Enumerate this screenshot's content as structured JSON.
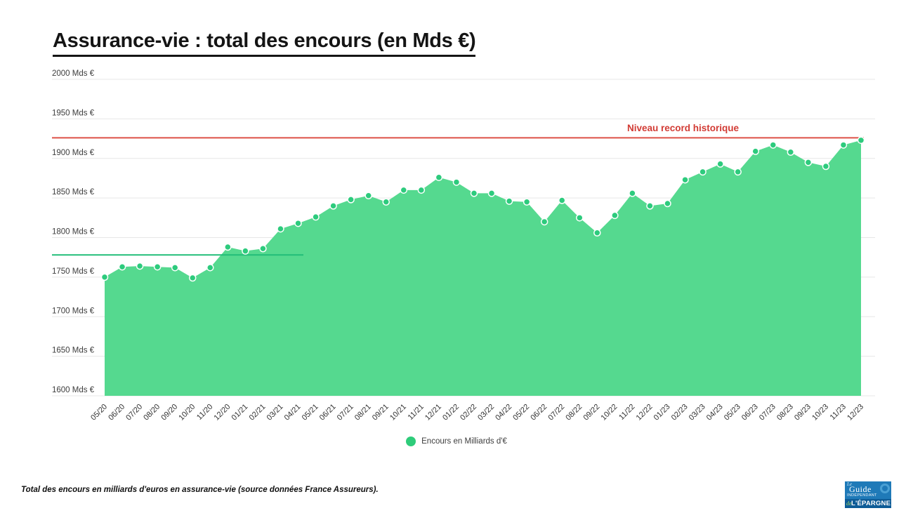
{
  "title": "Assurance-vie : total des encours (en Mds €)",
  "chart_data": {
    "type": "area",
    "x": [
      "05/20",
      "06/20",
      "07/20",
      "08/20",
      "09/20",
      "10/20",
      "11/20",
      "12/20",
      "01/21",
      "02/21",
      "03/21",
      "04/21",
      "05/21",
      "06/21",
      "07/21",
      "08/21",
      "09/21",
      "10/21",
      "11/21",
      "12/21",
      "01/22",
      "02/22",
      "03/22",
      "04/22",
      "05/22",
      "06/22",
      "07/22",
      "08/22",
      "09/22",
      "10/22",
      "11/22",
      "12/22",
      "01/23",
      "02/23",
      "03/23",
      "04/23",
      "05/23",
      "06/23",
      "07/23",
      "08/23",
      "09/23",
      "10/23",
      "11/23",
      "12/23"
    ],
    "series": [
      {
        "name": "Encours en Milliards d'€",
        "values": [
          1750,
          1763,
          1764,
          1763,
          1762,
          1749,
          1762,
          1788,
          1783,
          1786,
          1811,
          1818,
          1826,
          1840,
          1848,
          1853,
          1845,
          1860,
          1860,
          1876,
          1870,
          1856,
          1856,
          1846,
          1845,
          1820,
          1847,
          1825,
          1806,
          1828,
          1856,
          1840,
          1843,
          1873,
          1883,
          1893,
          1883,
          1909,
          1917,
          1908,
          1895,
          1890,
          1917,
          1923
        ],
        "point_markers": true
      }
    ],
    "ylim": [
      1600,
      2000
    ],
    "ytick_values": [
      2000,
      1950,
      1900,
      1850,
      1800,
      1750,
      1700,
      1650,
      1600
    ],
    "ytick_suffix": " Mds €",
    "grid": "horizontal",
    "legend_position": "bottom-center",
    "annotations": {
      "record_line": {
        "label": "Niveau record historique",
        "value": 1926,
        "color": "#dd5147"
      },
      "reference_line": {
        "value": 1778,
        "color": "#22bd79",
        "x_start": "05/20",
        "x_end": "04/21"
      }
    },
    "colors": {
      "area_fill": "#55d98f",
      "point": "#2dcb7d",
      "grid": "#e7e7e7",
      "axis_label": "#3d3d3d"
    }
  },
  "legend": {
    "label": "Encours en Milliards d'€",
    "dot_color": "#2ecc7a"
  },
  "footer": {
    "note": "Total des encours en milliards d'euros en assurance-vie (source données France Assureurs)."
  },
  "logo": {
    "line1": "Le",
    "line2": "Guide",
    "line3": "INDÉPENDANT",
    "line4": "de",
    "line5": "L'ÉPARGNE"
  }
}
